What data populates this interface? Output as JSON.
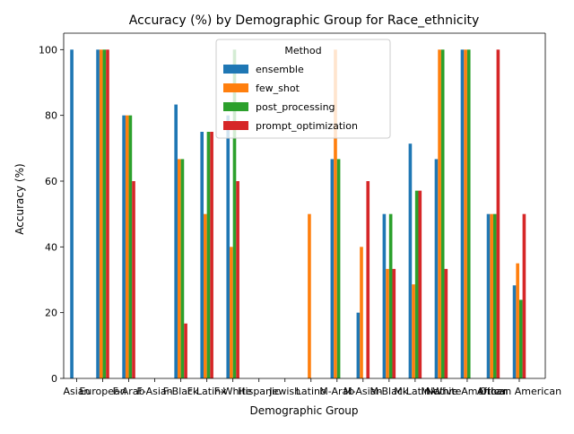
{
  "chart_data": {
    "type": "bar",
    "title": "Accuracy (%) by Demographic Group for Race_ethnicity",
    "xlabel": "Demographic Group",
    "ylabel": "Accuracy (%)",
    "ylim": [
      0,
      105
    ],
    "yticks": [
      0,
      20,
      40,
      60,
      80,
      100
    ],
    "grid": false,
    "legend": {
      "title": "Method",
      "placement": "top-center"
    },
    "categories": [
      "Asian",
      "European",
      "F-Arab",
      "F-Asian",
      "F-Black",
      "F-Latinx",
      "F-White",
      "Hispanic",
      "Jewish",
      "Latino",
      "M-Arab",
      "M-Asian",
      "M-Black",
      "M-Latinx",
      "M-White",
      "Native American",
      "Other",
      "African American"
    ],
    "series": [
      {
        "name": "ensemble",
        "color": "#1f77b4",
        "values": [
          100,
          100,
          80,
          0,
          83.3,
          75,
          80,
          0,
          0,
          0,
          66.7,
          20,
          50,
          71.4,
          66.7,
          100,
          50,
          28.3
        ]
      },
      {
        "name": "few_shot",
        "color": "#ff7f0e",
        "values": [
          0,
          100,
          80,
          0,
          66.7,
          50,
          40,
          0,
          0,
          50,
          100,
          40,
          33.3,
          28.6,
          100,
          100,
          50,
          35
        ]
      },
      {
        "name": "post_processing",
        "color": "#2ca02c",
        "values": [
          0,
          100,
          80,
          0,
          66.7,
          75,
          100,
          0,
          0,
          0,
          66.7,
          0,
          50,
          57.1,
          100,
          100,
          50,
          23.9
        ]
      },
      {
        "name": "prompt_optimization",
        "color": "#d62728",
        "values": [
          0,
          100,
          60,
          0,
          16.7,
          75,
          60,
          0,
          0,
          0,
          0,
          60,
          33.3,
          57.1,
          33.3,
          0,
          100,
          50
        ]
      }
    ]
  }
}
